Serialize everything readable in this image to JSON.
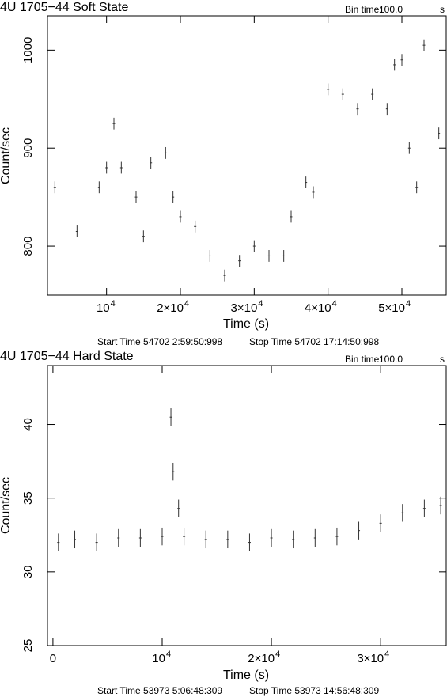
{
  "chart_data": [
    {
      "type": "scatter",
      "title": "4U 1705−44 Soft State",
      "bin_time_label": "Bin time:",
      "bin_time_value": "100.0",
      "bin_time_unit": "s",
      "xlabel": "Time (s)",
      "ylabel": "Count/sec",
      "start_time": "Start Time 54702  2:59:50:998",
      "stop_time": "Stop Time 54702 17:14:50:998",
      "xlim": [
        2000,
        56000
      ],
      "ylim": [
        750,
        1035
      ],
      "xticks": [
        {
          "value": 10000,
          "label": "10",
          "exp": "4",
          "prefix": ""
        },
        {
          "value": 20000,
          "label": "2×10",
          "exp": "4",
          "prefix": ""
        },
        {
          "value": 30000,
          "label": "3×10",
          "exp": "4",
          "prefix": ""
        },
        {
          "value": 40000,
          "label": "4×10",
          "exp": "4",
          "prefix": ""
        },
        {
          "value": 50000,
          "label": "5×10",
          "exp": "4",
          "prefix": ""
        }
      ],
      "yticks": [
        {
          "value": 800,
          "label": "800"
        },
        {
          "value": 900,
          "label": "900"
        },
        {
          "value": 1000,
          "label": "1000"
        }
      ],
      "grid": false,
      "series": [
        {
          "error": 6,
          "x": [
            3000,
            6000,
            9000,
            10000,
            11000,
            12000,
            14000,
            15000,
            16000,
            18000,
            19000,
            20000,
            22000,
            24000,
            26000,
            28000,
            30000,
            32000,
            34000,
            35000,
            37000,
            38000,
            40000,
            42000,
            44000,
            46000,
            48000,
            49000,
            50000,
            51000,
            52000,
            53000,
            55000
          ],
          "y": [
            860,
            815,
            860,
            880,
            925,
            880,
            850,
            810,
            885,
            895,
            850,
            830,
            820,
            790,
            770,
            785,
            800,
            790,
            790,
            830,
            865,
            855,
            960,
            955,
            940,
            955,
            940,
            985,
            990,
            900,
            860,
            1005,
            915
          ]
        }
      ]
    },
    {
      "type": "scatter",
      "title": "4U 1705−44 Hard State",
      "bin_time_label": "Bin time:",
      "bin_time_value": "100.0",
      "bin_time_unit": "s",
      "xlabel": "Time (s)",
      "ylabel": "Count/sec",
      "start_time": "Start Time 53973  5:06:48:309",
      "stop_time": "Stop Time 53973 14:56:48:309",
      "xlim": [
        -500,
        36000
      ],
      "ylim": [
        25,
        44
      ],
      "xticks": [
        {
          "value": 0,
          "label": "0",
          "exp": "",
          "prefix": ""
        },
        {
          "value": 10000,
          "label": "10",
          "exp": "4",
          "prefix": ""
        },
        {
          "value": 20000,
          "label": "2×10",
          "exp": "4",
          "prefix": ""
        },
        {
          "value": 30000,
          "label": "3×10",
          "exp": "4",
          "prefix": ""
        }
      ],
      "yticks": [
        {
          "value": 25,
          "label": "25"
        },
        {
          "value": 30,
          "label": "30"
        },
        {
          "value": 35,
          "label": "35"
        },
        {
          "value": 40,
          "label": "40"
        }
      ],
      "grid": false,
      "series": [
        {
          "error": 0.6,
          "x": [
            500,
            2000,
            4000,
            6000,
            8000,
            10000,
            10800,
            11000,
            11500,
            12000,
            14000,
            16000,
            18000,
            20000,
            22000,
            24000,
            26000,
            28000,
            30000,
            32000,
            34000,
            35500
          ],
          "y": [
            32.0,
            32.2,
            32.0,
            32.3,
            32.3,
            32.4,
            40.5,
            36.8,
            34.3,
            32.4,
            32.2,
            32.2,
            32.0,
            32.3,
            32.2,
            32.3,
            32.4,
            32.8,
            33.3,
            34.0,
            34.3,
            34.5
          ]
        }
      ]
    }
  ]
}
